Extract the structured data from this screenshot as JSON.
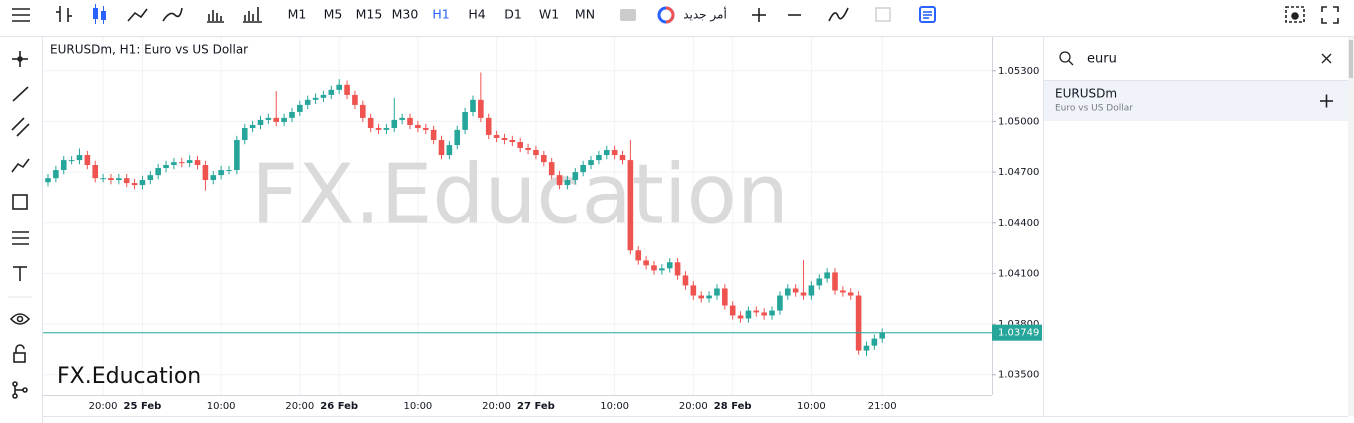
{
  "toolbar": {
    "timeframes": [
      "M1",
      "M5",
      "M15",
      "M30",
      "H1",
      "H4",
      "D1",
      "W1",
      "MN"
    ],
    "active": 4,
    "active_color": "#2962ff",
    "new_order": "أمر جديد"
  },
  "chart_data": {
    "type": "candlestick",
    "title": "EURUSDm, H1: Euro vs US Dollar",
    "watermark": "FX.Education",
    "up_color": "#26a69a",
    "down_color": "#ef5350",
    "ylim": [
      1.0338,
      1.055
    ],
    "yticks": [
      {
        "value": 1.035,
        "label": "1.03500"
      },
      {
        "value": 1.038,
        "label": "1.03800"
      },
      {
        "value": 1.041,
        "label": "1.04100"
      },
      {
        "value": 1.044,
        "label": "1.04400"
      },
      {
        "value": 1.047,
        "label": "1.04700"
      },
      {
        "value": 1.05,
        "label": "1.05000"
      },
      {
        "value": 1.053,
        "label": "1.05300"
      }
    ],
    "grid": true,
    "categories": [
      null,
      null,
      null,
      null,
      null,
      null,
      null,
      "20:00",
      null,
      null,
      null,
      null,
      "25 Feb",
      null,
      null,
      null,
      null,
      null,
      null,
      null,
      null,
      null,
      "10:00",
      null,
      null,
      null,
      null,
      null,
      null,
      null,
      null,
      null,
      "20:00",
      null,
      null,
      null,
      null,
      "26 Feb",
      null,
      null,
      null,
      null,
      null,
      null,
      null,
      null,
      null,
      "10:00",
      null,
      null,
      null,
      null,
      null,
      null,
      null,
      null,
      null,
      "20:00",
      null,
      null,
      null,
      null,
      "27 Feb",
      null,
      null,
      null,
      null,
      null,
      null,
      null,
      null,
      null,
      "10:00",
      null,
      null,
      null,
      null,
      null,
      null,
      null,
      null,
      null,
      "20:00",
      null,
      null,
      null,
      null,
      "28 Feb",
      null,
      null,
      null,
      null,
      null,
      null,
      null,
      null,
      null,
      "10:00",
      null,
      null,
      null,
      null,
      null,
      null,
      null,
      null,
      "21:00"
    ],
    "open": [
      1.0464,
      1.04664,
      1.04712,
      1.04771,
      1.04771,
      1.04801,
      1.04742,
      1.04664,
      1.04664,
      1.04653,
      1.04664,
      1.04635,
      1.04623,
      1.04653,
      1.04682,
      1.04724,
      1.04742,
      1.04759,
      1.04754,
      1.04771,
      1.04742,
      1.04653,
      1.04682,
      1.04712,
      1.04712,
      1.0489,
      1.04961,
      1.04979,
      1.05009,
      1.05021,
      1.04997,
      1.05021,
      1.05056,
      1.05098,
      1.05128,
      1.0514,
      1.05157,
      1.05187,
      1.05217,
      1.05157,
      1.05098,
      1.05021,
      1.04961,
      1.0495,
      1.04961,
      1.05009,
      1.05021,
      1.04979,
      1.04961,
      1.0495,
      1.0489,
      1.04801,
      1.0486,
      1.0495,
      1.05056,
      1.05128,
      1.05021,
      1.0492,
      1.04902,
      1.0489,
      1.04878,
      1.04843,
      1.04831,
      1.04801,
      1.04759,
      1.04682,
      1.04623,
      1.04653,
      1.047,
      1.04742,
      1.04771,
      1.04801,
      1.04831,
      1.04801,
      1.04771,
      1.04237,
      1.04177,
      1.04148,
      1.04118,
      1.0413,
      1.04166,
      1.04088,
      1.04029,
      1.03969,
      1.03952,
      1.03969,
      1.04011,
      1.0391,
      1.03851,
      1.03833,
      1.0388,
      1.03869,
      1.03851,
      1.0388,
      1.03969,
      1.04011,
      1.03987,
      1.03969,
      1.04029,
      1.0407,
      1.04106,
      1.03999,
      1.03987,
      1.03969,
      1.03643,
      1.03672,
      1.03714
    ],
    "high": [
      1.04689,
      1.04737,
      1.04796,
      1.04796,
      1.0484,
      1.04826,
      1.04767,
      1.04689,
      1.04689,
      1.04689,
      1.04689,
      1.0466,
      1.04678,
      1.04707,
      1.04749,
      1.04767,
      1.04784,
      1.04784,
      1.048,
      1.04796,
      1.04767,
      1.04707,
      1.04737,
      1.04737,
      1.04915,
      1.04986,
      1.05004,
      1.05034,
      1.05046,
      1.0518,
      1.05046,
      1.05081,
      1.05123,
      1.05153,
      1.05165,
      1.05182,
      1.05212,
      1.0525,
      1.05242,
      1.05182,
      1.05123,
      1.05046,
      1.04986,
      1.04986,
      1.0514,
      1.05046,
      1.05046,
      1.05004,
      1.04986,
      1.04975,
      1.04915,
      1.04885,
      1.04975,
      1.05081,
      1.05153,
      1.0529,
      1.05046,
      1.04945,
      1.04927,
      1.04915,
      1.04903,
      1.04868,
      1.04856,
      1.04826,
      1.04784,
      1.04707,
      1.04678,
      1.04725,
      1.04767,
      1.04796,
      1.04826,
      1.04856,
      1.04856,
      1.04826,
      1.0489,
      1.04262,
      1.04202,
      1.04173,
      1.04155,
      1.04191,
      1.04191,
      1.04113,
      1.04054,
      1.03994,
      1.03994,
      1.04036,
      1.04036,
      1.03935,
      1.03876,
      1.03905,
      1.03905,
      1.03894,
      1.03905,
      1.03994,
      1.04036,
      1.04036,
      1.0418,
      1.04054,
      1.04095,
      1.04131,
      1.04131,
      1.04024,
      1.04012,
      1.03994,
      1.03697,
      1.03739,
      1.03774
    ],
    "low": [
      1.04615,
      1.04639,
      1.04687,
      1.04746,
      1.04746,
      1.04717,
      1.04639,
      1.04639,
      1.04628,
      1.04628,
      1.0461,
      1.04598,
      1.04598,
      1.04628,
      1.04657,
      1.04699,
      1.04717,
      1.04729,
      1.04729,
      1.04717,
      1.0459,
      1.04628,
      1.04657,
      1.04687,
      1.04687,
      1.04865,
      1.04936,
      1.04954,
      1.04984,
      1.04972,
      1.04972,
      1.04996,
      1.05031,
      1.05073,
      1.05103,
      1.05115,
      1.05132,
      1.05162,
      1.05132,
      1.05073,
      1.04996,
      1.04936,
      1.04925,
      1.04925,
      1.04936,
      1.04984,
      1.04954,
      1.04936,
      1.04925,
      1.04865,
      1.04776,
      1.04776,
      1.04835,
      1.04925,
      1.05031,
      1.04996,
      1.04895,
      1.04877,
      1.04865,
      1.04853,
      1.04818,
      1.04806,
      1.04776,
      1.04734,
      1.04657,
      1.04598,
      1.04598,
      1.04628,
      1.04675,
      1.04717,
      1.04746,
      1.04776,
      1.04776,
      1.04746,
      1.04212,
      1.04152,
      1.04123,
      1.04093,
      1.04093,
      1.04105,
      1.04063,
      1.04004,
      1.03944,
      1.03927,
      1.03927,
      1.03944,
      1.03885,
      1.03826,
      1.03808,
      1.03808,
      1.03844,
      1.03826,
      1.03826,
      1.03855,
      1.03944,
      1.03962,
      1.03944,
      1.03944,
      1.04004,
      1.04045,
      1.03974,
      1.03962,
      1.03944,
      1.03618,
      1.0361,
      1.03647,
      1.03689
    ],
    "close": [
      1.04664,
      1.04712,
      1.04771,
      1.04771,
      1.04801,
      1.04742,
      1.04664,
      1.04664,
      1.04653,
      1.04664,
      1.04635,
      1.04623,
      1.04653,
      1.04682,
      1.04724,
      1.04742,
      1.04759,
      1.04754,
      1.04771,
      1.04742,
      1.04653,
      1.04682,
      1.04712,
      1.04712,
      1.0489,
      1.04961,
      1.04979,
      1.05009,
      1.05021,
      1.04997,
      1.05021,
      1.05056,
      1.05098,
      1.05128,
      1.0514,
      1.05157,
      1.05187,
      1.05217,
      1.05157,
      1.05098,
      1.05021,
      1.04961,
      1.0495,
      1.04961,
      1.05009,
      1.05021,
      1.04979,
      1.04961,
      1.0495,
      1.0489,
      1.04801,
      1.0486,
      1.0495,
      1.05056,
      1.05128,
      1.05021,
      1.0492,
      1.04902,
      1.0489,
      1.04878,
      1.04843,
      1.04831,
      1.04801,
      1.04759,
      1.04682,
      1.04623,
      1.04653,
      1.047,
      1.04742,
      1.04771,
      1.04801,
      1.04831,
      1.04801,
      1.04771,
      1.04237,
      1.04177,
      1.04148,
      1.04118,
      1.0413,
      1.04166,
      1.04088,
      1.04029,
      1.03969,
      1.03952,
      1.03969,
      1.04011,
      1.0391,
      1.03851,
      1.03833,
      1.0388,
      1.03869,
      1.03851,
      1.0388,
      1.03969,
      1.04011,
      1.03987,
      1.03969,
      1.04029,
      1.0407,
      1.04106,
      1.03999,
      1.03987,
      1.03969,
      1.03643,
      1.03672,
      1.03714,
      1.03749
    ]
  },
  "search": {
    "query": "euru",
    "results": [
      {
        "symbol": "EURUSDm",
        "description": "Euro vs US Dollar"
      }
    ]
  }
}
